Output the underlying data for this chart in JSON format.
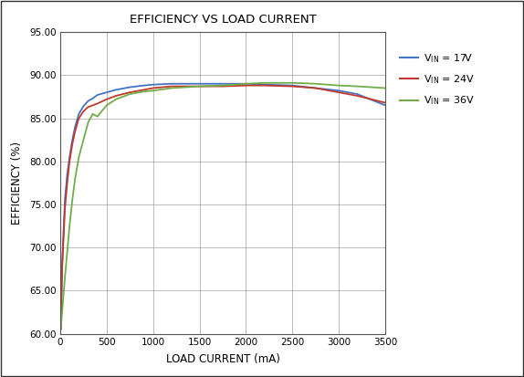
{
  "title": "EFFICIENCY VS LOAD CURRENT",
  "xlabel": "LOAD CURRENT (mA)",
  "ylabel": "EFFICIENCY (%)",
  "xlim": [
    0,
    3500
  ],
  "ylim": [
    60.0,
    95.0
  ],
  "xticks": [
    0,
    500,
    1000,
    1500,
    2000,
    2500,
    3000,
    3500
  ],
  "yticks": [
    60.0,
    65.0,
    70.0,
    75.0,
    80.0,
    85.0,
    90.0,
    95.0
  ],
  "background_color": "#ffffff",
  "grid_color": "#888888",
  "border_color": "#555555",
  "legend_labels": [
    "$V_{IN}$ = 17V",
    "$V_{IN}$ = 24V",
    "$V_{IN}$ = 36V"
  ],
  "lines": [
    {
      "color": "#4472c4",
      "x": [
        5,
        20,
        50,
        75,
        100,
        130,
        160,
        200,
        250,
        300,
        350,
        400,
        500,
        600,
        750,
        900,
        1000,
        1200,
        1500,
        1750,
        2000,
        2200,
        2500,
        2750,
        3000,
        3200,
        3500
      ],
      "y": [
        60.5,
        68.0,
        75.5,
        78.5,
        80.5,
        82.5,
        84.0,
        85.5,
        86.4,
        87.0,
        87.3,
        87.7,
        88.0,
        88.3,
        88.6,
        88.8,
        88.9,
        89.0,
        89.0,
        89.0,
        89.0,
        88.9,
        88.8,
        88.5,
        88.2,
        87.8,
        86.5
      ]
    },
    {
      "color": "#c0392b",
      "x": [
        5,
        20,
        50,
        75,
        100,
        130,
        160,
        200,
        250,
        300,
        350,
        400,
        500,
        600,
        750,
        900,
        1000,
        1200,
        1500,
        1750,
        2000,
        2200,
        2500,
        2750,
        3000,
        3200,
        3500
      ],
      "y": [
        60.5,
        67.5,
        74.5,
        77.5,
        80.0,
        82.0,
        83.5,
        85.0,
        85.8,
        86.3,
        86.5,
        86.7,
        87.2,
        87.6,
        88.0,
        88.3,
        88.5,
        88.7,
        88.7,
        88.7,
        88.8,
        88.8,
        88.7,
        88.5,
        88.0,
        87.6,
        86.8
      ]
    },
    {
      "color": "#70ad47",
      "x": [
        5,
        20,
        50,
        75,
        100,
        130,
        160,
        200,
        250,
        300,
        350,
        400,
        500,
        600,
        750,
        900,
        1000,
        1200,
        1500,
        1750,
        2000,
        2200,
        2500,
        2750,
        3000,
        3200,
        3500
      ],
      "y": [
        60.5,
        62.5,
        66.5,
        69.5,
        72.5,
        75.5,
        78.0,
        80.5,
        82.5,
        84.5,
        85.5,
        85.2,
        86.5,
        87.2,
        87.8,
        88.1,
        88.2,
        88.5,
        88.7,
        88.8,
        89.0,
        89.1,
        89.1,
        89.0,
        88.8,
        88.7,
        88.5
      ]
    }
  ]
}
